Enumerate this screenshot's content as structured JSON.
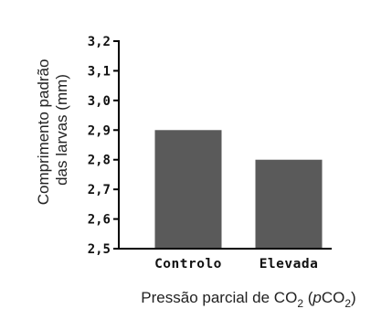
{
  "chart_data": {
    "type": "bar",
    "categories": [
      "Controlo",
      "Elevada"
    ],
    "values": [
      2.9,
      2.8
    ],
    "ylabel_lines": [
      "Comprimento padrão",
      "das larvas (mm)"
    ],
    "xlabel_parts": {
      "pre": "Pressão parcial de CO",
      "sub1": "2",
      "mid": " (",
      "italic": "p",
      "co": "CO",
      "sub2": "2",
      "post": ")"
    },
    "ylim": [
      2.5,
      3.2
    ],
    "yticks": [
      2.5,
      2.6,
      2.7,
      2.8,
      2.9,
      3.0,
      3.1,
      3.2
    ],
    "ytick_labels": [
      "2,5",
      "2,6",
      "2,7",
      "2,8",
      "2,9",
      "3,0",
      "3,1",
      "3,2"
    ],
    "grid": false,
    "legend": "none",
    "bar_color": "#5a5a5a"
  }
}
